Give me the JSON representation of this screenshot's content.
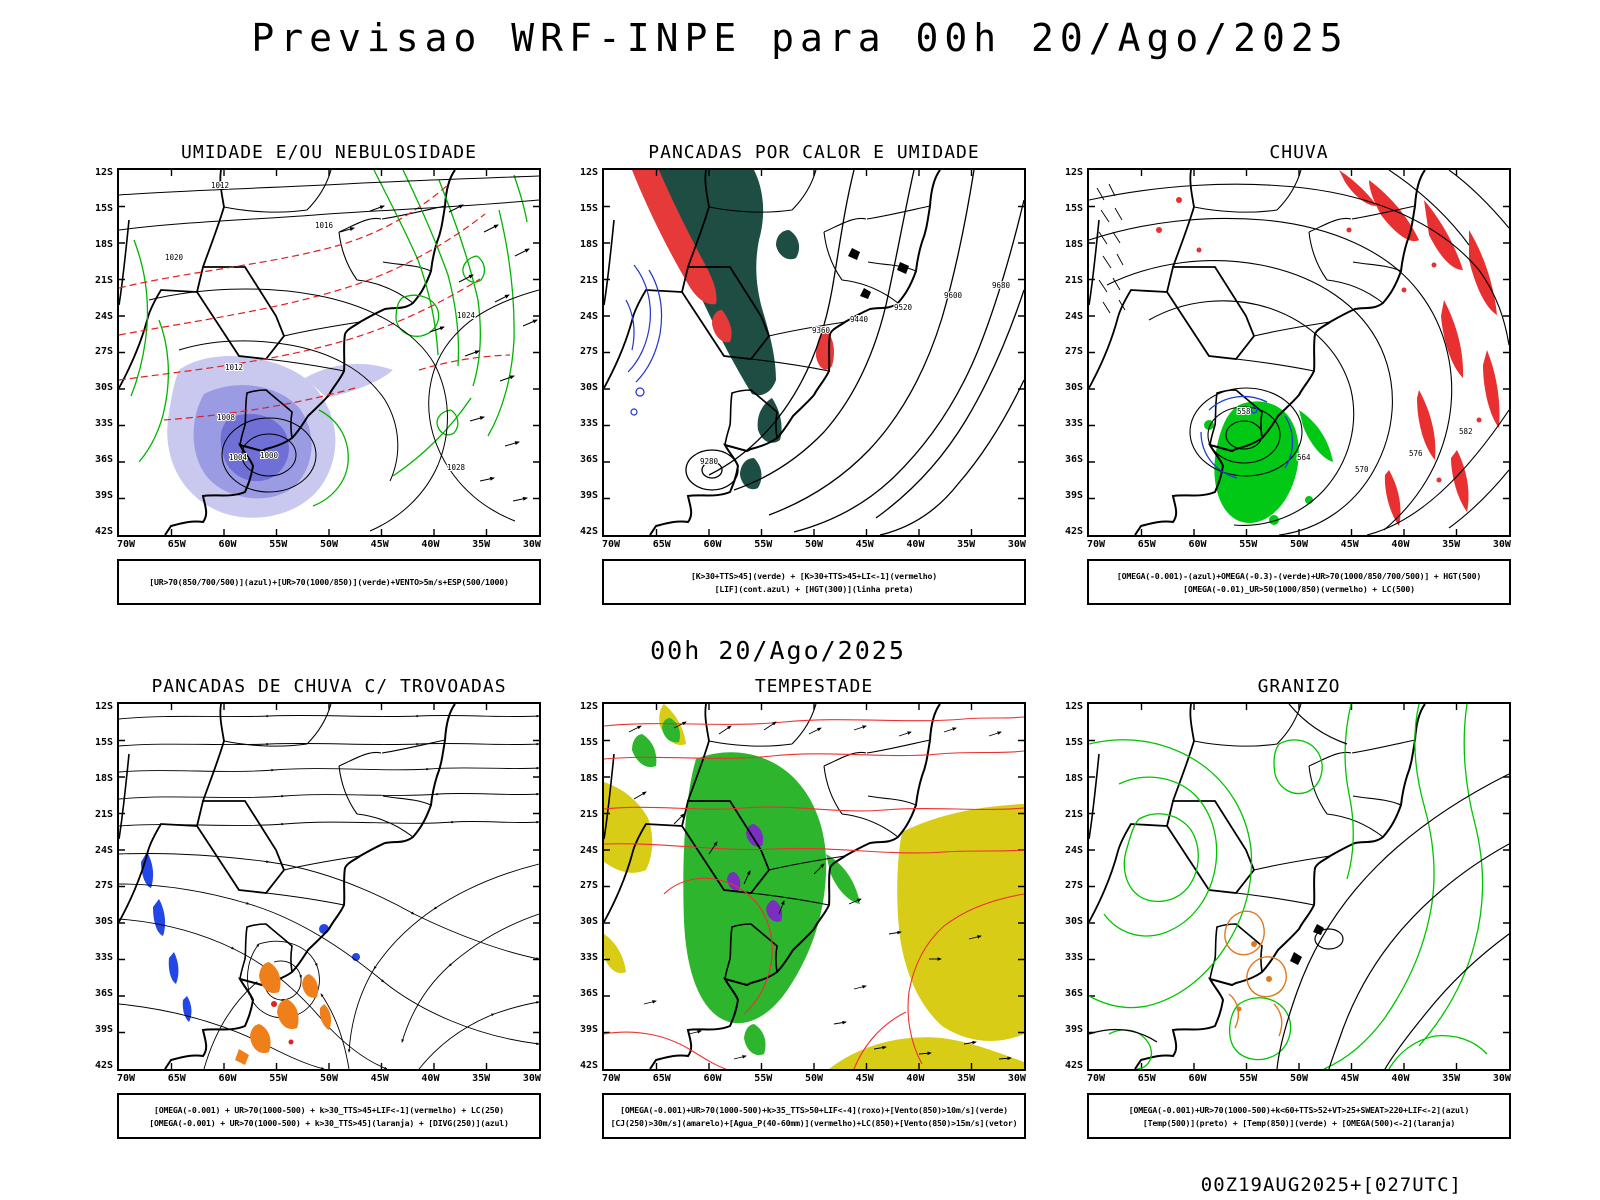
{
  "page": {
    "title": "Previsao WRF-INPE  para 00h 20/Ago/2025",
    "valid_time_label": "00h 20/Ago/2025",
    "run_label": "00Z19AUG2025+[027UTC]"
  },
  "axes": {
    "lat_ticks": [
      "12S",
      "15S",
      "18S",
      "21S",
      "24S",
      "27S",
      "30S",
      "33S",
      "36S",
      "39S",
      "42S"
    ],
    "lon_ticks": [
      "70W",
      "65W",
      "60W",
      "55W",
      "50W",
      "45W",
      "40W",
      "35W",
      "30W"
    ]
  },
  "panels": [
    {
      "id": "umidade",
      "title": "UMIDADE E/OU NEBULOSIDADE",
      "caption_lines": [
        "[UR>70(850/700/500)](azul)+[UR>70(1000/850)](verde)+VENTO>5m/s+ESP(500/1000)"
      ],
      "contour_labels": [
        "1012",
        "1016",
        "1020",
        "1024",
        "1012",
        "1008",
        "1004",
        "1000",
        "1028"
      ]
    },
    {
      "id": "pancadas-calor",
      "title": "PANCADAS POR CALOR E UMIDADE",
      "caption_lines": [
        "[K>30+TTS>45](verde) + [K>30+TTS>45+LI<-1](vermelho)",
        "[LIF](cont.azul) + [HGT(300)](linha preta)"
      ],
      "contour_labels": [
        "9680",
        "9600",
        "9520",
        "9440",
        "9360",
        "9280"
      ]
    },
    {
      "id": "chuva",
      "title": "CHUVA",
      "caption_lines": [
        "[OMEGA(-0.001)-(azul)+OMEGA(-0.3)-(verde)+UR>70(1000/850/700/500)] + HGT(500)",
        "[OMEGA(-0.01)_UR>50(1000/850)(vermelho) + LC(500)"
      ],
      "contour_labels": [
        "558",
        "564",
        "570",
        "576",
        "582"
      ]
    },
    {
      "id": "trovoadas",
      "title": "PANCADAS DE CHUVA C/ TROVOADAS",
      "caption_lines": [
        "[OMEGA(-0.001) + UR>70(1000-500) + k>30_TTS>45+LIF<-1](vermelho) + LC(250)",
        "[OMEGA(-0.001) + UR>70(1000-500) + k>30_TTS>45](laranja) + [DIVG(250)](azul)"
      ],
      "contour_labels": []
    },
    {
      "id": "tempestade",
      "title": "TEMPESTADE",
      "caption_lines": [
        "[OMEGA(-0.001)+UR>70(1000-500)+k>35_TTS>50+LIF<-4](roxo)+[Vento(850)>10m/s](verde)",
        "[CJ(250)>30m/s](amarelo)+[Agua_P(40-60mm)](vermelho)+LC(850)+[Vento(850)>15m/s](vetor)"
      ],
      "contour_labels": []
    },
    {
      "id": "granizo",
      "title": "GRANIZO",
      "caption_lines": [
        "[OMEGA(-0.001)+UR>70(1000-500)+k<60+TTS>52+VT>25+SWEAT>220+LIF<-2](azul)",
        "[Temp(500)](preto) + [Temp(850)](verde) + [OMEGA(500)<-2](laranja)"
      ],
      "contour_labels": []
    }
  ],
  "colors": {
    "humidity_blue": "#8a8ade",
    "contour_green": "#00b400",
    "contour_red": "#e02020",
    "convection_teal": "#1e4d44",
    "severe_red": "#e63939",
    "rain_green": "#00c814",
    "jet_yellow": "#d9cc16",
    "shower_orange": "#ef7f1a",
    "divergence_blue": "#2233cc",
    "hail_orange": "#e0781e",
    "storm_purple": "#7a2fbf"
  }
}
